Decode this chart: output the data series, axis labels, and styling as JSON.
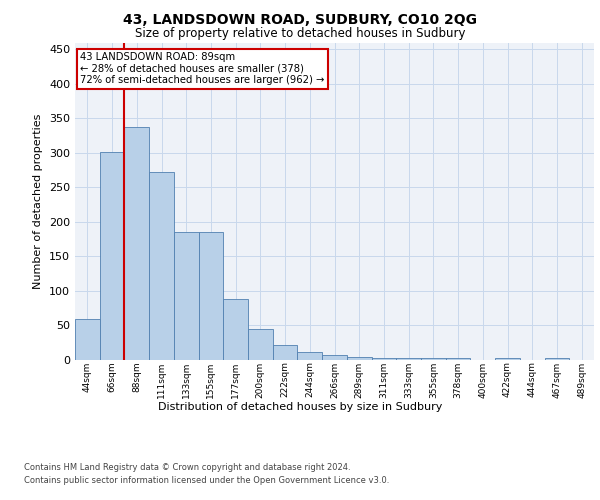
{
  "title": "43, LANDSDOWN ROAD, SUDBURY, CO10 2QG",
  "subtitle": "Size of property relative to detached houses in Sudbury",
  "xlabel": "Distribution of detached houses by size in Sudbury",
  "ylabel": "Number of detached properties",
  "categories": [
    "44sqm",
    "66sqm",
    "88sqm",
    "111sqm",
    "133sqm",
    "155sqm",
    "177sqm",
    "200sqm",
    "222sqm",
    "244sqm",
    "266sqm",
    "289sqm",
    "311sqm",
    "333sqm",
    "355sqm",
    "378sqm",
    "400sqm",
    "422sqm",
    "444sqm",
    "467sqm",
    "489sqm"
  ],
  "values": [
    60,
    302,
    338,
    272,
    185,
    185,
    88,
    45,
    22,
    12,
    7,
    5,
    3,
    3,
    3,
    3,
    0,
    3,
    0,
    3,
    0
  ],
  "bar_color": "#b8d0e8",
  "bar_edge_color": "#5080b0",
  "grid_color": "#c8d8ec",
  "background_color": "#eef2f8",
  "marker_line_color": "#cc0000",
  "marker_label": "43 LANDSDOWN ROAD: 89sqm",
  "marker_pct_smaller": "28% of detached houses are smaller (378)",
  "marker_pct_larger": "72% of semi-detached houses are larger (962)",
  "annotation_box_color": "#cc0000",
  "ylim": [
    0,
    460
  ],
  "yticks": [
    0,
    50,
    100,
    150,
    200,
    250,
    300,
    350,
    400,
    450
  ],
  "footer1": "Contains HM Land Registry data © Crown copyright and database right 2024.",
  "footer2": "Contains public sector information licensed under the Open Government Licence v3.0."
}
